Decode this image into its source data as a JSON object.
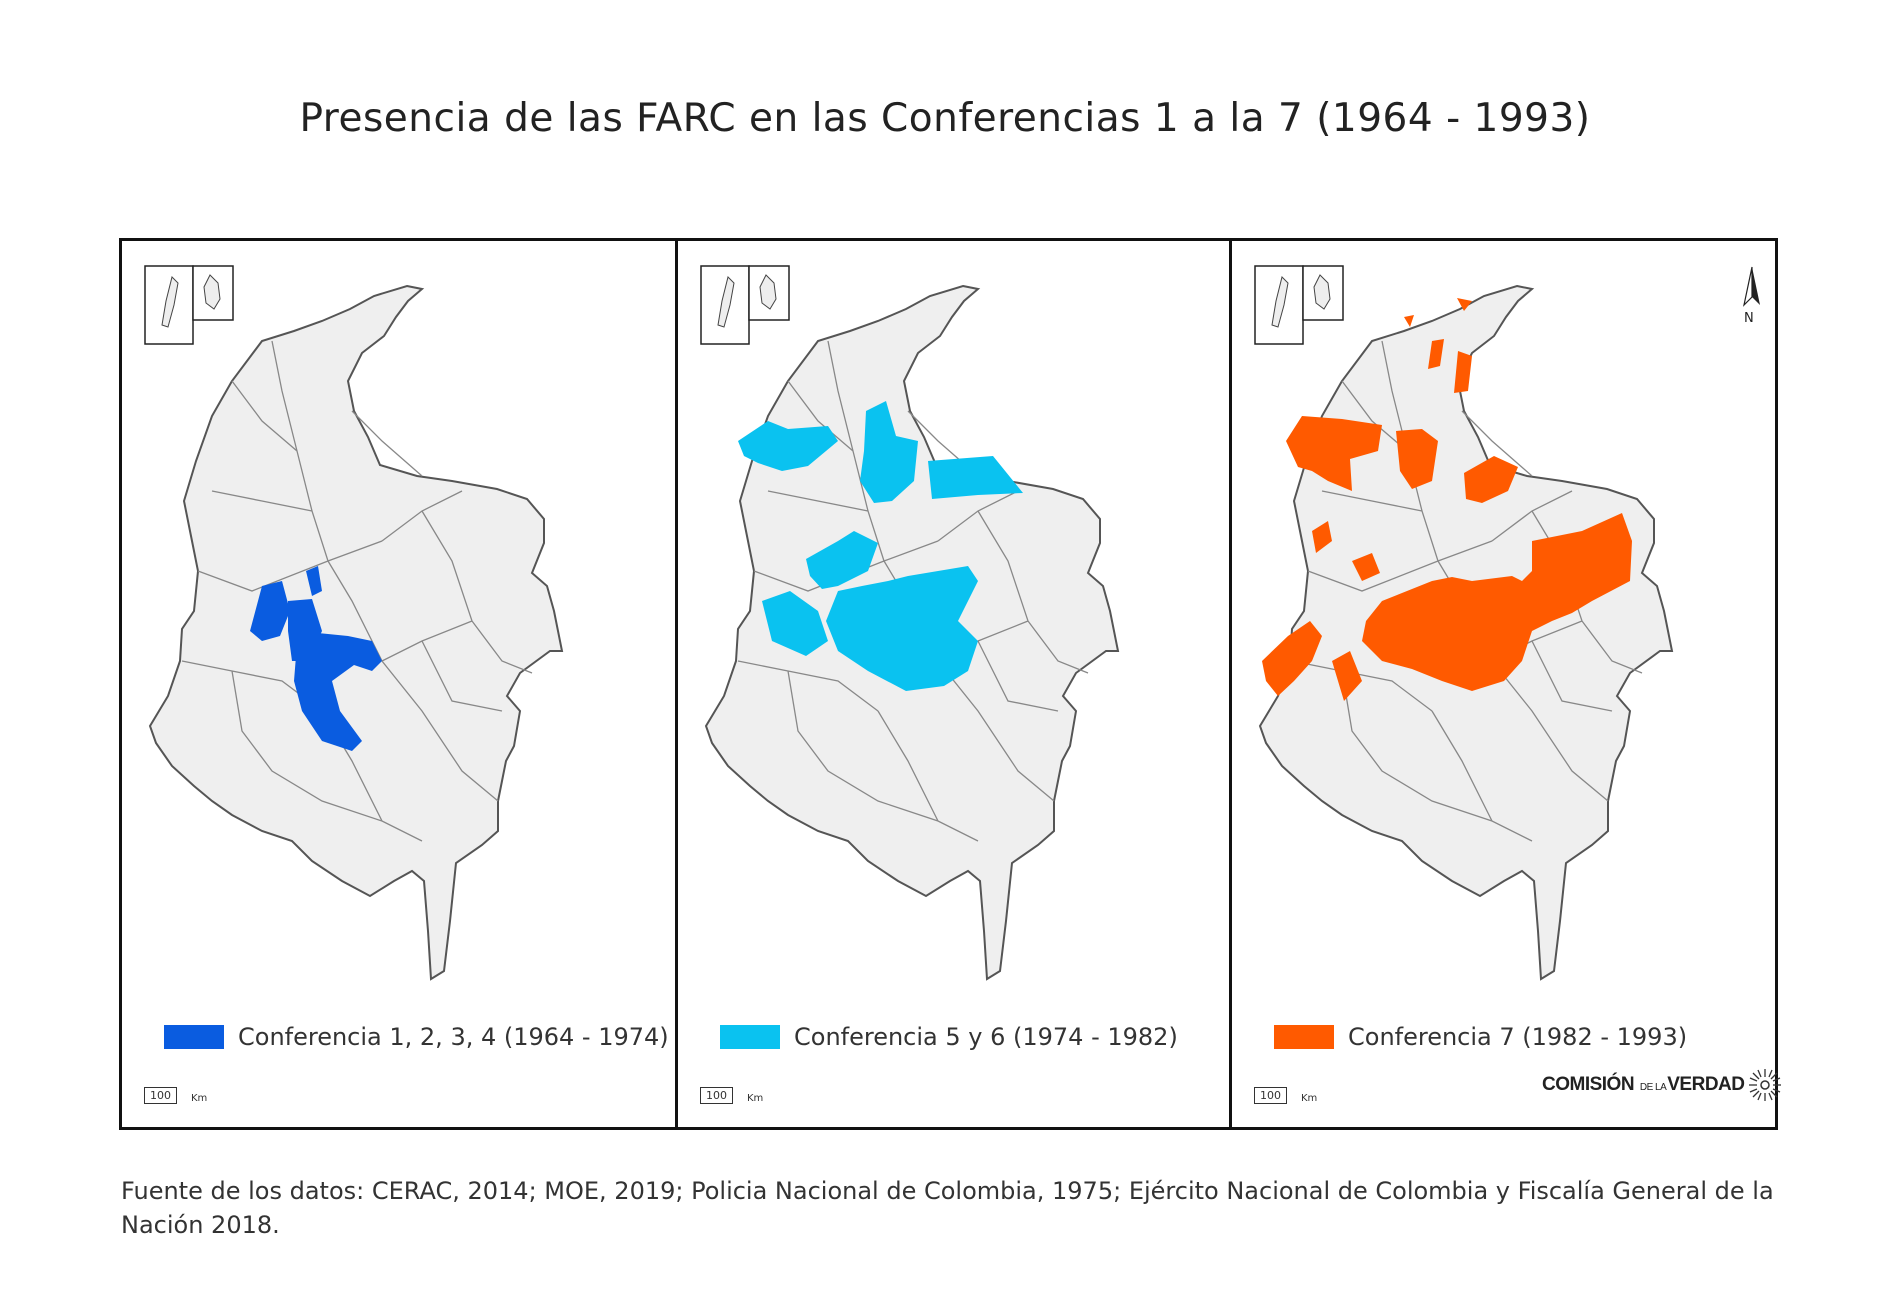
{
  "title": "Presencia de las FARC en las Conferencias 1 a la 7 (1964 - 1993)",
  "panels": [
    {
      "legend_label": "Conferencia 1, 2, 3, 4 (1964 - 1974)",
      "color": "#0a5ce0"
    },
    {
      "legend_label": "Conferencia 5 y 6 (1974 - 1982)",
      "color": "#0ac2f0"
    },
    {
      "legend_label": "Conferencia 7 (1982 - 1993)",
      "color": "#ff5a00"
    }
  ],
  "scale": {
    "value": "100",
    "unit": "Km"
  },
  "north_label": "N",
  "logo": {
    "main": "COMISIÓN",
    "small": "DE LA",
    "end": "VERDAD"
  },
  "source": "Fuente de los datos: CERAC, 2014; MOE, 2019; Policia Nacional de Colombia, 1975; Ejército Nacional de Colombia y Fiscalía General de la Nación 2018.",
  "map_colors": {
    "country_fill": "#efefef",
    "border": "#555555",
    "internal_lines": "#888888"
  }
}
